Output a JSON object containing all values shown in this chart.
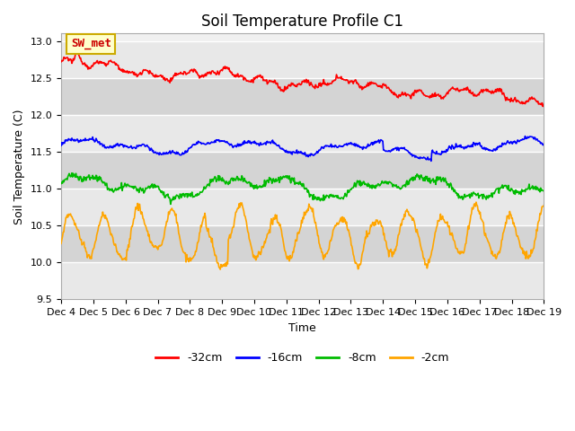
{
  "title": "Soil Temperature Profile C1",
  "xlabel": "Time",
  "ylabel": "Soil Temperature (C)",
  "ylim": [
    9.5,
    13.1
  ],
  "tick_labels": [
    "Dec 4",
    "Dec 5",
    "Dec 6",
    "Dec 7",
    "Dec 8",
    "Dec 9",
    "Dec 10",
    "Dec 11",
    "Dec 12",
    "Dec 13",
    "Dec 14",
    "Dec 15",
    "Dec 16",
    "Dec 17",
    "Dec 18",
    "Dec 19"
  ],
  "legend_labels": [
    "-32cm",
    "-16cm",
    "-8cm",
    "-2cm"
  ],
  "legend_colors": [
    "red",
    "blue",
    "green",
    "orange"
  ],
  "annotation": "SW_met",
  "annotation_color": "#cc0000",
  "annotation_bg": "#ffffcc",
  "annotation_edge": "#ccaa00",
  "plot_bg_light": "#f0f0f0",
  "plot_bg_dark": "#d8d8d8",
  "line_width": 1.2,
  "title_fontsize": 12,
  "label_fontsize": 9,
  "tick_fontsize": 8,
  "yticks": [
    9.5,
    10.0,
    10.5,
    11.0,
    11.5,
    12.0,
    12.5,
    13.0
  ]
}
